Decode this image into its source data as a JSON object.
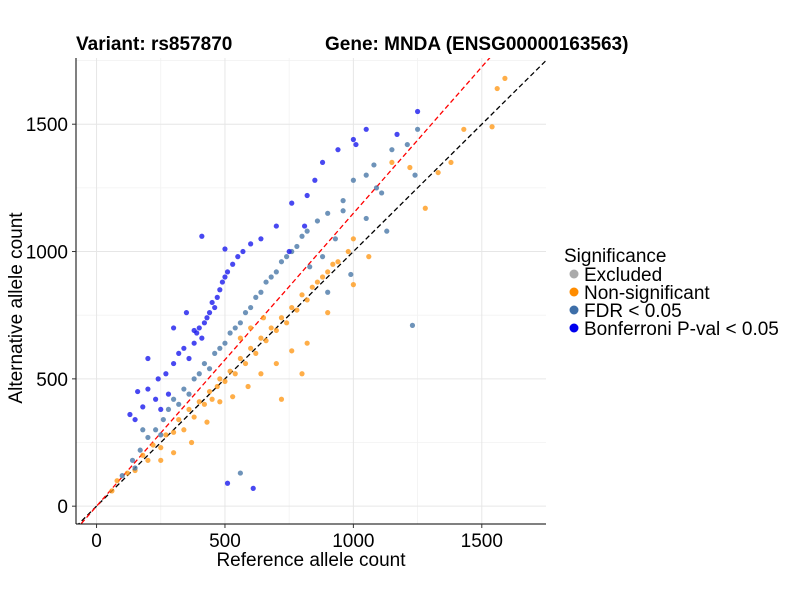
{
  "chart_data": {
    "type": "scatter",
    "title_left": "Variant: rs857870",
    "title_right": "Gene: MNDA (ENSG00000163563)",
    "xlabel": "Reference allele count",
    "ylabel": "Alternative allele count",
    "xlim": [
      -80,
      1750
    ],
    "ylim": [
      -70,
      1760
    ],
    "x_ticks": [
      0,
      500,
      1000,
      1500
    ],
    "y_ticks": [
      0,
      500,
      1000,
      1500
    ],
    "grid": true,
    "legend": {
      "title": "Significance",
      "placement": "right",
      "entries": [
        {
          "label": "Excluded",
          "color": "#aaaaaa"
        },
        {
          "label": "Non-significant",
          "color": "#ff8c00"
        },
        {
          "label": "FDR < 0.05",
          "color": "#3d6ea8"
        },
        {
          "label": "Bonferroni P-val < 0.05",
          "color": "#0000ee"
        }
      ]
    },
    "reference_lines": [
      {
        "style": "dashed",
        "color": "#000000",
        "slope": 1.0,
        "intercept": 0
      },
      {
        "style": "dashed",
        "color": "#ff0000",
        "slope": 1.15,
        "intercept": 0
      }
    ],
    "series": [
      {
        "name": "Non-significant",
        "color": "#ff9a1a",
        "points": [
          [
            60,
            60
          ],
          [
            80,
            100
          ],
          [
            120,
            130
          ],
          [
            150,
            140
          ],
          [
            180,
            200
          ],
          [
            200,
            180
          ],
          [
            220,
            240
          ],
          [
            250,
            230
          ],
          [
            270,
            280
          ],
          [
            300,
            290
          ],
          [
            320,
            340
          ],
          [
            340,
            300
          ],
          [
            360,
            380
          ],
          [
            380,
            350
          ],
          [
            400,
            410
          ],
          [
            420,
            400
          ],
          [
            440,
            450
          ],
          [
            450,
            420
          ],
          [
            470,
            470
          ],
          [
            480,
            500
          ],
          [
            500,
            490
          ],
          [
            520,
            530
          ],
          [
            540,
            520
          ],
          [
            560,
            580
          ],
          [
            580,
            560
          ],
          [
            600,
            620
          ],
          [
            620,
            600
          ],
          [
            640,
            660
          ],
          [
            660,
            650
          ],
          [
            680,
            700
          ],
          [
            700,
            690
          ],
          [
            720,
            740
          ],
          [
            740,
            720
          ],
          [
            760,
            780
          ],
          [
            780,
            770
          ],
          [
            800,
            830
          ],
          [
            820,
            810
          ],
          [
            840,
            860
          ],
          [
            860,
            880
          ],
          [
            880,
            900
          ],
          [
            900,
            920
          ],
          [
            920,
            950
          ],
          [
            940,
            960
          ],
          [
            980,
            1000
          ],
          [
            1000,
            1050
          ],
          [
            1150,
            1350
          ],
          [
            1220,
            1330
          ],
          [
            1280,
            1170
          ],
          [
            1330,
            1310
          ],
          [
            1380,
            1350
          ],
          [
            1430,
            1480
          ],
          [
            1540,
            1490
          ],
          [
            1560,
            1640
          ],
          [
            1590,
            1680
          ],
          [
            370,
            250
          ],
          [
            430,
            330
          ],
          [
            480,
            410
          ],
          [
            530,
            430
          ],
          [
            590,
            470
          ],
          [
            640,
            520
          ],
          [
            700,
            560
          ],
          [
            760,
            610
          ],
          [
            820,
            640
          ],
          [
            900,
            760
          ],
          [
            1000,
            870
          ],
          [
            1060,
            980
          ],
          [
            720,
            420
          ],
          [
            800,
            520
          ],
          [
            300,
            210
          ],
          [
            250,
            180
          ],
          [
            560,
            660
          ],
          [
            600,
            700
          ],
          [
            650,
            740
          ]
        ]
      },
      {
        "name": "FDR < 0.05",
        "color": "#4a78a8",
        "points": [
          [
            100,
            120
          ],
          [
            140,
            180
          ],
          [
            170,
            220
          ],
          [
            200,
            270
          ],
          [
            230,
            300
          ],
          [
            260,
            340
          ],
          [
            280,
            380
          ],
          [
            300,
            420
          ],
          [
            320,
            400
          ],
          [
            340,
            460
          ],
          [
            360,
            440
          ],
          [
            380,
            500
          ],
          [
            400,
            520
          ],
          [
            420,
            560
          ],
          [
            440,
            540
          ],
          [
            460,
            600
          ],
          [
            480,
            620
          ],
          [
            500,
            640
          ],
          [
            520,
            680
          ],
          [
            540,
            700
          ],
          [
            560,
            720
          ],
          [
            580,
            760
          ],
          [
            600,
            780
          ],
          [
            620,
            820
          ],
          [
            640,
            840
          ],
          [
            660,
            880
          ],
          [
            680,
            900
          ],
          [
            700,
            920
          ],
          [
            720,
            960
          ],
          [
            740,
            980
          ],
          [
            760,
            1000
          ],
          [
            780,
            1020
          ],
          [
            800,
            1060
          ],
          [
            820,
            1080
          ],
          [
            860,
            1120
          ],
          [
            900,
            1150
          ],
          [
            960,
            1200
          ],
          [
            1000,
            1280
          ],
          [
            1050,
            1300
          ],
          [
            1080,
            1340
          ],
          [
            1150,
            1400
          ],
          [
            1210,
            1420
          ],
          [
            1250,
            1480
          ],
          [
            1090,
            1250
          ],
          [
            1240,
            1300
          ],
          [
            1110,
            1230
          ],
          [
            830,
            940
          ],
          [
            960,
            1160
          ],
          [
            1050,
            1130
          ],
          [
            1230,
            710
          ],
          [
            560,
            130
          ],
          [
            990,
            910
          ],
          [
            900,
            840
          ],
          [
            930,
            1050
          ],
          [
            880,
            980
          ],
          [
            1130,
            1080
          ],
          [
            150,
            150
          ],
          [
            250,
            280
          ],
          [
            180,
            300
          ]
        ]
      },
      {
        "name": "Bonferroni P-val < 0.05",
        "color": "#1a1aee",
        "points": [
          [
            130,
            360
          ],
          [
            160,
            450
          ],
          [
            180,
            390
          ],
          [
            200,
            460
          ],
          [
            230,
            420
          ],
          [
            240,
            500
          ],
          [
            250,
            380
          ],
          [
            270,
            520
          ],
          [
            280,
            440
          ],
          [
            300,
            560
          ],
          [
            320,
            600
          ],
          [
            340,
            620
          ],
          [
            360,
            580
          ],
          [
            380,
            640
          ],
          [
            390,
            680
          ],
          [
            400,
            700
          ],
          [
            410,
            660
          ],
          [
            420,
            720
          ],
          [
            430,
            740
          ],
          [
            440,
            760
          ],
          [
            450,
            800
          ],
          [
            460,
            780
          ],
          [
            470,
            820
          ],
          [
            480,
            850
          ],
          [
            490,
            880
          ],
          [
            500,
            900
          ],
          [
            510,
            920
          ],
          [
            530,
            950
          ],
          [
            550,
            980
          ],
          [
            570,
            1000
          ],
          [
            600,
            1030
          ],
          [
            640,
            1050
          ],
          [
            700,
            1100
          ],
          [
            760,
            1190
          ],
          [
            820,
            1220
          ],
          [
            850,
            1280
          ],
          [
            880,
            1350
          ],
          [
            940,
            1400
          ],
          [
            1000,
            1440
          ],
          [
            1050,
            1480
          ],
          [
            1170,
            1460
          ],
          [
            1250,
            1550
          ],
          [
            410,
            1060
          ],
          [
            500,
            1010
          ],
          [
            300,
            700
          ],
          [
            350,
            760
          ],
          [
            510,
            90
          ],
          [
            610,
            70
          ],
          [
            750,
            1000
          ],
          [
            810,
            1100
          ],
          [
            1010,
            1420
          ],
          [
            200,
            580
          ],
          [
            150,
            340
          ],
          [
            380,
            690
          ]
        ]
      }
    ]
  }
}
